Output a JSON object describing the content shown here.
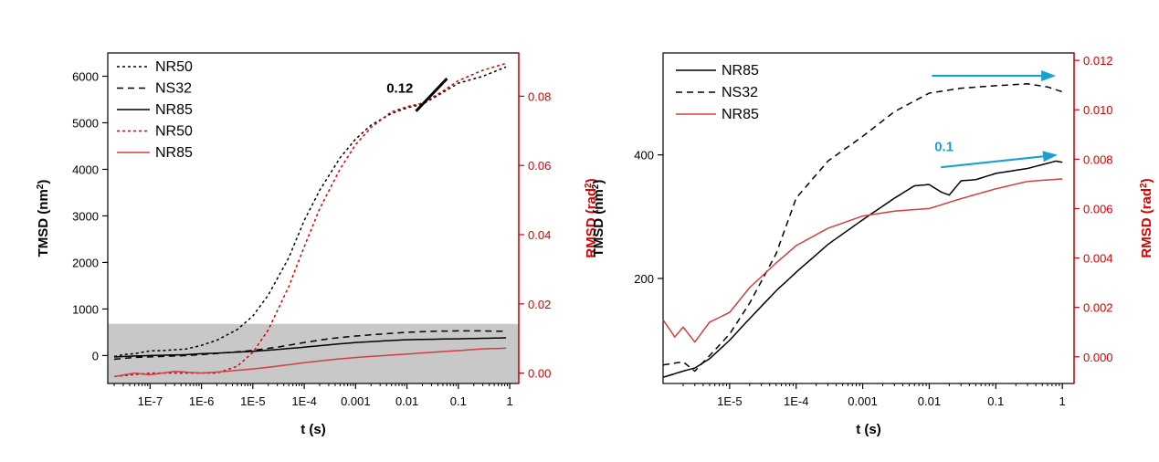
{
  "chart_data": [
    {
      "type": "line",
      "xlabel": "t (s)",
      "ylabel": "TMSD (nm²)",
      "ylabel_base": "TMSD (nm",
      "ylabel_sup": "2",
      "ylabel_end": ")",
      "y2label": "RMSD (rad²)",
      "y2label_base": "RMSD (rad",
      "y2label_sup": "2",
      "y2label_end": ")",
      "x_scale": "log",
      "xlim": [
        1.5e-08,
        1.5
      ],
      "ylim": [
        -600,
        6500
      ],
      "y2lim": [
        -0.003,
        0.0925
      ],
      "x_ticks": [
        1e-07,
        1e-06,
        1e-05,
        0.0001,
        0.001,
        0.01,
        0.1,
        1
      ],
      "x_tick_labels": [
        "1E-7",
        "1E-6",
        "1E-5",
        "1E-4",
        "0.001",
        "0.01",
        "0.1",
        "1"
      ],
      "y_ticks": [
        0,
        1000,
        2000,
        3000,
        4000,
        5000,
        6000
      ],
      "y_tick_labels": [
        "0",
        "1000",
        "2000",
        "3000",
        "4000",
        "5000",
        "6000"
      ],
      "y2_ticks": [
        0,
        0.02,
        0.04,
        0.06,
        0.08
      ],
      "y2_tick_labels": [
        "0.00",
        "0.02",
        "0.04",
        "0.06",
        "0.08"
      ],
      "shaded_band": [
        -600,
        680
      ],
      "annotation": {
        "text": "0.12",
        "x": 0.004,
        "y": 5650,
        "slope_line": [
          [
            0.015,
            5250
          ],
          [
            0.06,
            5950
          ]
        ]
      },
      "legend": {
        "placement": "top-left"
      },
      "series": [
        {
          "name": "NR50",
          "axis": "left",
          "color": "#000000",
          "dash": "3,3",
          "points": [
            [
              2e-08,
              -20
            ],
            [
              3e-08,
              20
            ],
            [
              5e-08,
              40
            ],
            [
              7e-08,
              70
            ],
            [
              1e-07,
              100
            ],
            [
              2e-07,
              110
            ],
            [
              5e-07,
              140
            ],
            [
              1e-06,
              220
            ],
            [
              2e-06,
              330
            ],
            [
              5e-06,
              560
            ],
            [
              1e-05,
              850
            ],
            [
              2e-05,
              1300
            ],
            [
              5e-05,
              2100
            ],
            [
              0.0001,
              2900
            ],
            [
              0.0002,
              3550
            ],
            [
              0.0005,
              4250
            ],
            [
              0.001,
              4650
            ],
            [
              0.002,
              4950
            ],
            [
              0.005,
              5200
            ],
            [
              0.01,
              5320
            ],
            [
              0.02,
              5400
            ],
            [
              0.05,
              5650
            ],
            [
              0.1,
              5850
            ],
            [
              0.3,
              6000
            ],
            [
              0.85,
              6200
            ]
          ]
        },
        {
          "name": "NS32",
          "axis": "left",
          "color": "#000000",
          "dash": "7,5",
          "points": [
            [
              2e-08,
              -80
            ],
            [
              5e-08,
              -40
            ],
            [
              1e-07,
              -30
            ],
            [
              5e-07,
              0
            ],
            [
              1e-06,
              20
            ],
            [
              3e-06,
              60
            ],
            [
              1e-05,
              110
            ],
            [
              3e-05,
              180
            ],
            [
              0.0001,
              280
            ],
            [
              0.0003,
              360
            ],
            [
              0.001,
              420
            ],
            [
              0.003,
              460
            ],
            [
              0.01,
              500
            ],
            [
              0.03,
              520
            ],
            [
              0.1,
              530
            ],
            [
              0.3,
              530
            ],
            [
              0.85,
              520
            ]
          ]
        },
        {
          "name": "NR85",
          "axis": "left",
          "color": "#000000",
          "dash": "",
          "points": [
            [
              2e-08,
              -30
            ],
            [
              5e-08,
              -10
            ],
            [
              1e-07,
              0
            ],
            [
              5e-07,
              20
            ],
            [
              1e-06,
              40
            ],
            [
              3e-06,
              60
            ],
            [
              1e-05,
              90
            ],
            [
              3e-05,
              130
            ],
            [
              0.0001,
              180
            ],
            [
              0.0003,
              230
            ],
            [
              0.001,
              280
            ],
            [
              0.003,
              310
            ],
            [
              0.01,
              340
            ],
            [
              0.03,
              350
            ],
            [
              0.1,
              360
            ],
            [
              0.3,
              370
            ],
            [
              0.85,
              380
            ]
          ]
        },
        {
          "name": "NR50",
          "axis": "right",
          "color": "#d40000",
          "dash": "3,3",
          "points": [
            [
              2e-08,
              -0.001
            ],
            [
              1e-07,
              0.0
            ],
            [
              1e-06,
              0.0
            ],
            [
              2e-06,
              0.0
            ],
            [
              5e-06,
              0.002
            ],
            [
              1e-05,
              0.006
            ],
            [
              2e-05,
              0.0125
            ],
            [
              5e-05,
              0.025
            ],
            [
              0.0001,
              0.0365
            ],
            [
              0.0002,
              0.0475
            ],
            [
              0.0005,
              0.059
            ],
            [
              0.001,
              0.066
            ],
            [
              0.002,
              0.071
            ],
            [
              0.005,
              0.0755
            ],
            [
              0.01,
              0.077
            ],
            [
              0.02,
              0.078
            ],
            [
              0.05,
              0.0815
            ],
            [
              0.1,
              0.0845
            ],
            [
              0.3,
              0.0875
            ],
            [
              0.85,
              0.0895
            ]
          ]
        },
        {
          "name": "NR85",
          "axis": "right",
          "color": "#d04040",
          "dash": "",
          "points": [
            [
              2e-08,
              -0.001
            ],
            [
              5e-08,
              0.0
            ],
            [
              1e-07,
              -0.0005
            ],
            [
              3e-07,
              0.0005
            ],
            [
              1e-06,
              0.0
            ],
            [
              3e-06,
              0.0005
            ],
            [
              1e-05,
              0.0012
            ],
            [
              3e-05,
              0.002
            ],
            [
              0.0001,
              0.003
            ],
            [
              0.0003,
              0.0038
            ],
            [
              0.001,
              0.0045
            ],
            [
              0.003,
              0.005
            ],
            [
              0.01,
              0.0055
            ],
            [
              0.03,
              0.006
            ],
            [
              0.1,
              0.0065
            ],
            [
              0.3,
              0.007
            ],
            [
              0.85,
              0.0072
            ]
          ]
        }
      ]
    },
    {
      "type": "line",
      "xlabel": "t (s)",
      "ylabel": "TMSD (nm²)",
      "ylabel_base": "TMSD (nm",
      "ylabel_sup": "2",
      "ylabel_end": ")",
      "y2label": "RMSD (rad²)",
      "y2label_base": "RMSD (rad",
      "y2label_sup": "2",
      "y2label_end": ")",
      "x_scale": "log",
      "xlim": [
        1e-06,
        1.5
      ],
      "ylim": [
        30,
        565
      ],
      "y2lim": [
        -0.00108,
        0.0123
      ],
      "x_ticks": [
        1e-05,
        0.0001,
        0.001,
        0.01,
        0.1,
        1
      ],
      "x_tick_labels": [
        "1E-5",
        "1E-4",
        "0.001",
        "0.01",
        "0.1",
        "1"
      ],
      "y_ticks": [
        200,
        400
      ],
      "y_tick_labels": [
        "200",
        "400"
      ],
      "y2_ticks": [
        0,
        0.002,
        0.004,
        0.006,
        0.008,
        0.01,
        0.012
      ],
      "y2_tick_labels": [
        "0.000",
        "0.002",
        "0.004",
        "0.006",
        "0.008",
        "0.010",
        "0.012"
      ],
      "annotation": {
        "text": "0.1",
        "x": 0.012,
        "y": 406,
        "arrows": [
          {
            "from": [
              0.011,
              528
            ],
            "to": [
              0.8,
              528
            ]
          },
          {
            "from": [
              0.015,
              380
            ],
            "to": [
              0.85,
              400
            ]
          }
        ]
      },
      "arrow_color": "#1aa0d0",
      "legend": {
        "placement": "top-left"
      },
      "series": [
        {
          "name": "NR85",
          "axis": "left",
          "color": "#000000",
          "dash": "",
          "points": [
            [
              1e-06,
              40
            ],
            [
              2e-06,
              50
            ],
            [
              3e-06,
              55
            ],
            [
              5e-06,
              70
            ],
            [
              1e-05,
              100
            ],
            [
              2e-05,
              135
            ],
            [
              5e-05,
              180
            ],
            [
              0.0001,
              210
            ],
            [
              0.0003,
              255
            ],
            [
              0.001,
              295
            ],
            [
              0.003,
              330
            ],
            [
              0.006,
              350
            ],
            [
              0.01,
              352
            ],
            [
              0.015,
              340
            ],
            [
              0.02,
              335
            ],
            [
              0.03,
              358
            ],
            [
              0.05,
              360
            ],
            [
              0.1,
              370
            ],
            [
              0.3,
              378
            ],
            [
              0.8,
              390
            ],
            [
              1.0,
              388
            ]
          ]
        },
        {
          "name": "NS32",
          "axis": "left",
          "color": "#000000",
          "dash": "7,5",
          "points": [
            [
              1e-06,
              60
            ],
            [
              2e-06,
              65
            ],
            [
              3e-06,
              50
            ],
            [
              5e-06,
              75
            ],
            [
              1e-05,
              110
            ],
            [
              2e-05,
              160
            ],
            [
              5e-05,
              240
            ],
            [
              0.0001,
              330
            ],
            [
              0.0003,
              390
            ],
            [
              0.001,
              430
            ],
            [
              0.003,
              470
            ],
            [
              0.01,
              500
            ],
            [
              0.03,
              508
            ],
            [
              0.1,
              512
            ],
            [
              0.3,
              515
            ],
            [
              0.6,
              510
            ],
            [
              1.0,
              502
            ]
          ]
        },
        {
          "name": "NR85",
          "axis": "right",
          "color": "#d04040",
          "dash": "",
          "points": [
            [
              1e-06,
              0.0015
            ],
            [
              1.5e-06,
              0.0008
            ],
            [
              2e-06,
              0.0012
            ],
            [
              3e-06,
              0.0006
            ],
            [
              5e-06,
              0.0014
            ],
            [
              1e-05,
              0.0018
            ],
            [
              2e-05,
              0.0028
            ],
            [
              5e-05,
              0.0038
            ],
            [
              0.0001,
              0.0045
            ],
            [
              0.0003,
              0.0052
            ],
            [
              0.001,
              0.0057
            ],
            [
              0.003,
              0.0059
            ],
            [
              0.01,
              0.006
            ],
            [
              0.03,
              0.0064
            ],
            [
              0.1,
              0.0068
            ],
            [
              0.3,
              0.0071
            ],
            [
              1.0,
              0.0072
            ]
          ]
        }
      ]
    }
  ]
}
